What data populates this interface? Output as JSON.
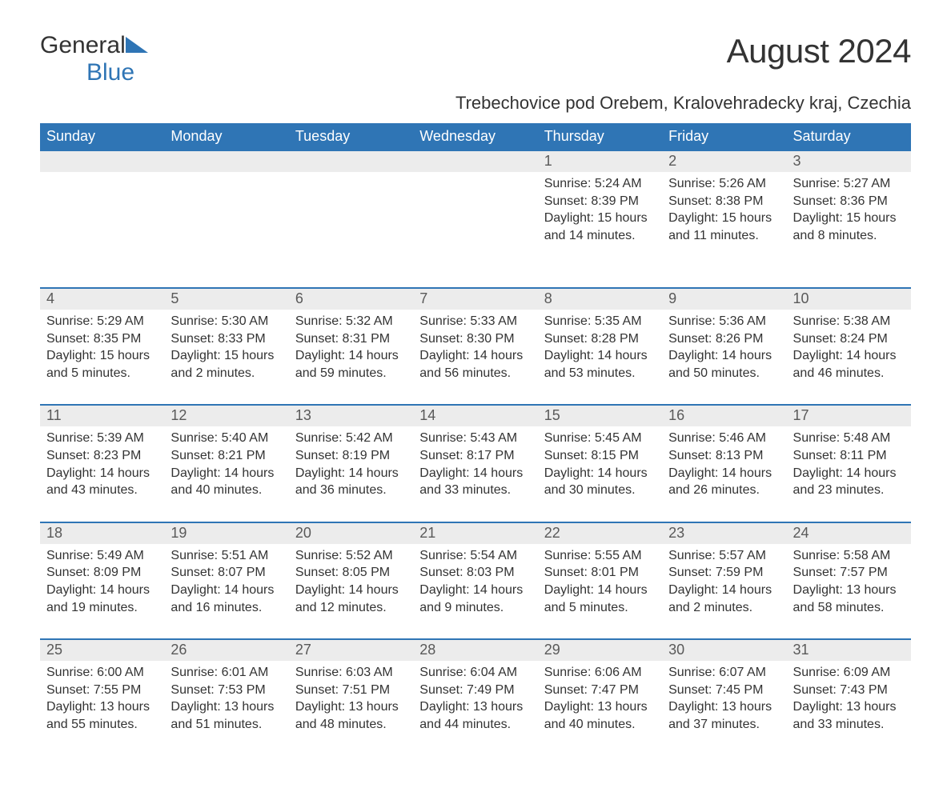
{
  "logo": {
    "word1": "General",
    "word2": "Blue"
  },
  "title": "August 2024",
  "subtitle": "Trebechovice pod Orebem, Kralovehradecky kraj, Czechia",
  "colors": {
    "header_bg": "#2f75b5",
    "header_text": "#ffffff",
    "daynum_bg": "#ececec",
    "daynum_text": "#595959",
    "row_border": "#2f75b5",
    "body_text": "#333333",
    "page_bg": "#ffffff",
    "logo_blue": "#2f75b5"
  },
  "typography": {
    "title_size_pt": 32,
    "subtitle_size_pt": 17,
    "header_size_pt": 14,
    "daynum_size_pt": 14,
    "cell_size_pt": 12
  },
  "table": {
    "columns": [
      "Sunday",
      "Monday",
      "Tuesday",
      "Wednesday",
      "Thursday",
      "Friday",
      "Saturday"
    ],
    "weeks": [
      [
        null,
        null,
        null,
        null,
        {
          "day": "1",
          "sunrise": "5:24 AM",
          "sunset": "8:39 PM",
          "daylight": "15 hours and 14 minutes."
        },
        {
          "day": "2",
          "sunrise": "5:26 AM",
          "sunset": "8:38 PM",
          "daylight": "15 hours and 11 minutes."
        },
        {
          "day": "3",
          "sunrise": "5:27 AM",
          "sunset": "8:36 PM",
          "daylight": "15 hours and 8 minutes."
        }
      ],
      [
        {
          "day": "4",
          "sunrise": "5:29 AM",
          "sunset": "8:35 PM",
          "daylight": "15 hours and 5 minutes."
        },
        {
          "day": "5",
          "sunrise": "5:30 AM",
          "sunset": "8:33 PM",
          "daylight": "15 hours and 2 minutes."
        },
        {
          "day": "6",
          "sunrise": "5:32 AM",
          "sunset": "8:31 PM",
          "daylight": "14 hours and 59 minutes."
        },
        {
          "day": "7",
          "sunrise": "5:33 AM",
          "sunset": "8:30 PM",
          "daylight": "14 hours and 56 minutes."
        },
        {
          "day": "8",
          "sunrise": "5:35 AM",
          "sunset": "8:28 PM",
          "daylight": "14 hours and 53 minutes."
        },
        {
          "day": "9",
          "sunrise": "5:36 AM",
          "sunset": "8:26 PM",
          "daylight": "14 hours and 50 minutes."
        },
        {
          "day": "10",
          "sunrise": "5:38 AM",
          "sunset": "8:24 PM",
          "daylight": "14 hours and 46 minutes."
        }
      ],
      [
        {
          "day": "11",
          "sunrise": "5:39 AM",
          "sunset": "8:23 PM",
          "daylight": "14 hours and 43 minutes."
        },
        {
          "day": "12",
          "sunrise": "5:40 AM",
          "sunset": "8:21 PM",
          "daylight": "14 hours and 40 minutes."
        },
        {
          "day": "13",
          "sunrise": "5:42 AM",
          "sunset": "8:19 PM",
          "daylight": "14 hours and 36 minutes."
        },
        {
          "day": "14",
          "sunrise": "5:43 AM",
          "sunset": "8:17 PM",
          "daylight": "14 hours and 33 minutes."
        },
        {
          "day": "15",
          "sunrise": "5:45 AM",
          "sunset": "8:15 PM",
          "daylight": "14 hours and 30 minutes."
        },
        {
          "day": "16",
          "sunrise": "5:46 AM",
          "sunset": "8:13 PM",
          "daylight": "14 hours and 26 minutes."
        },
        {
          "day": "17",
          "sunrise": "5:48 AM",
          "sunset": "8:11 PM",
          "daylight": "14 hours and 23 minutes."
        }
      ],
      [
        {
          "day": "18",
          "sunrise": "5:49 AM",
          "sunset": "8:09 PM",
          "daylight": "14 hours and 19 minutes."
        },
        {
          "day": "19",
          "sunrise": "5:51 AM",
          "sunset": "8:07 PM",
          "daylight": "14 hours and 16 minutes."
        },
        {
          "day": "20",
          "sunrise": "5:52 AM",
          "sunset": "8:05 PM",
          "daylight": "14 hours and 12 minutes."
        },
        {
          "day": "21",
          "sunrise": "5:54 AM",
          "sunset": "8:03 PM",
          "daylight": "14 hours and 9 minutes."
        },
        {
          "day": "22",
          "sunrise": "5:55 AM",
          "sunset": "8:01 PM",
          "daylight": "14 hours and 5 minutes."
        },
        {
          "day": "23",
          "sunrise": "5:57 AM",
          "sunset": "7:59 PM",
          "daylight": "14 hours and 2 minutes."
        },
        {
          "day": "24",
          "sunrise": "5:58 AM",
          "sunset": "7:57 PM",
          "daylight": "13 hours and 58 minutes."
        }
      ],
      [
        {
          "day": "25",
          "sunrise": "6:00 AM",
          "sunset": "7:55 PM",
          "daylight": "13 hours and 55 minutes."
        },
        {
          "day": "26",
          "sunrise": "6:01 AM",
          "sunset": "7:53 PM",
          "daylight": "13 hours and 51 minutes."
        },
        {
          "day": "27",
          "sunrise": "6:03 AM",
          "sunset": "7:51 PM",
          "daylight": "13 hours and 48 minutes."
        },
        {
          "day": "28",
          "sunrise": "6:04 AM",
          "sunset": "7:49 PM",
          "daylight": "13 hours and 44 minutes."
        },
        {
          "day": "29",
          "sunrise": "6:06 AM",
          "sunset": "7:47 PM",
          "daylight": "13 hours and 40 minutes."
        },
        {
          "day": "30",
          "sunrise": "6:07 AM",
          "sunset": "7:45 PM",
          "daylight": "13 hours and 37 minutes."
        },
        {
          "day": "31",
          "sunrise": "6:09 AM",
          "sunset": "7:43 PM",
          "daylight": "13 hours and 33 minutes."
        }
      ]
    ],
    "labels": {
      "sunrise": "Sunrise: ",
      "sunset": "Sunset: ",
      "daylight": "Daylight: "
    }
  }
}
